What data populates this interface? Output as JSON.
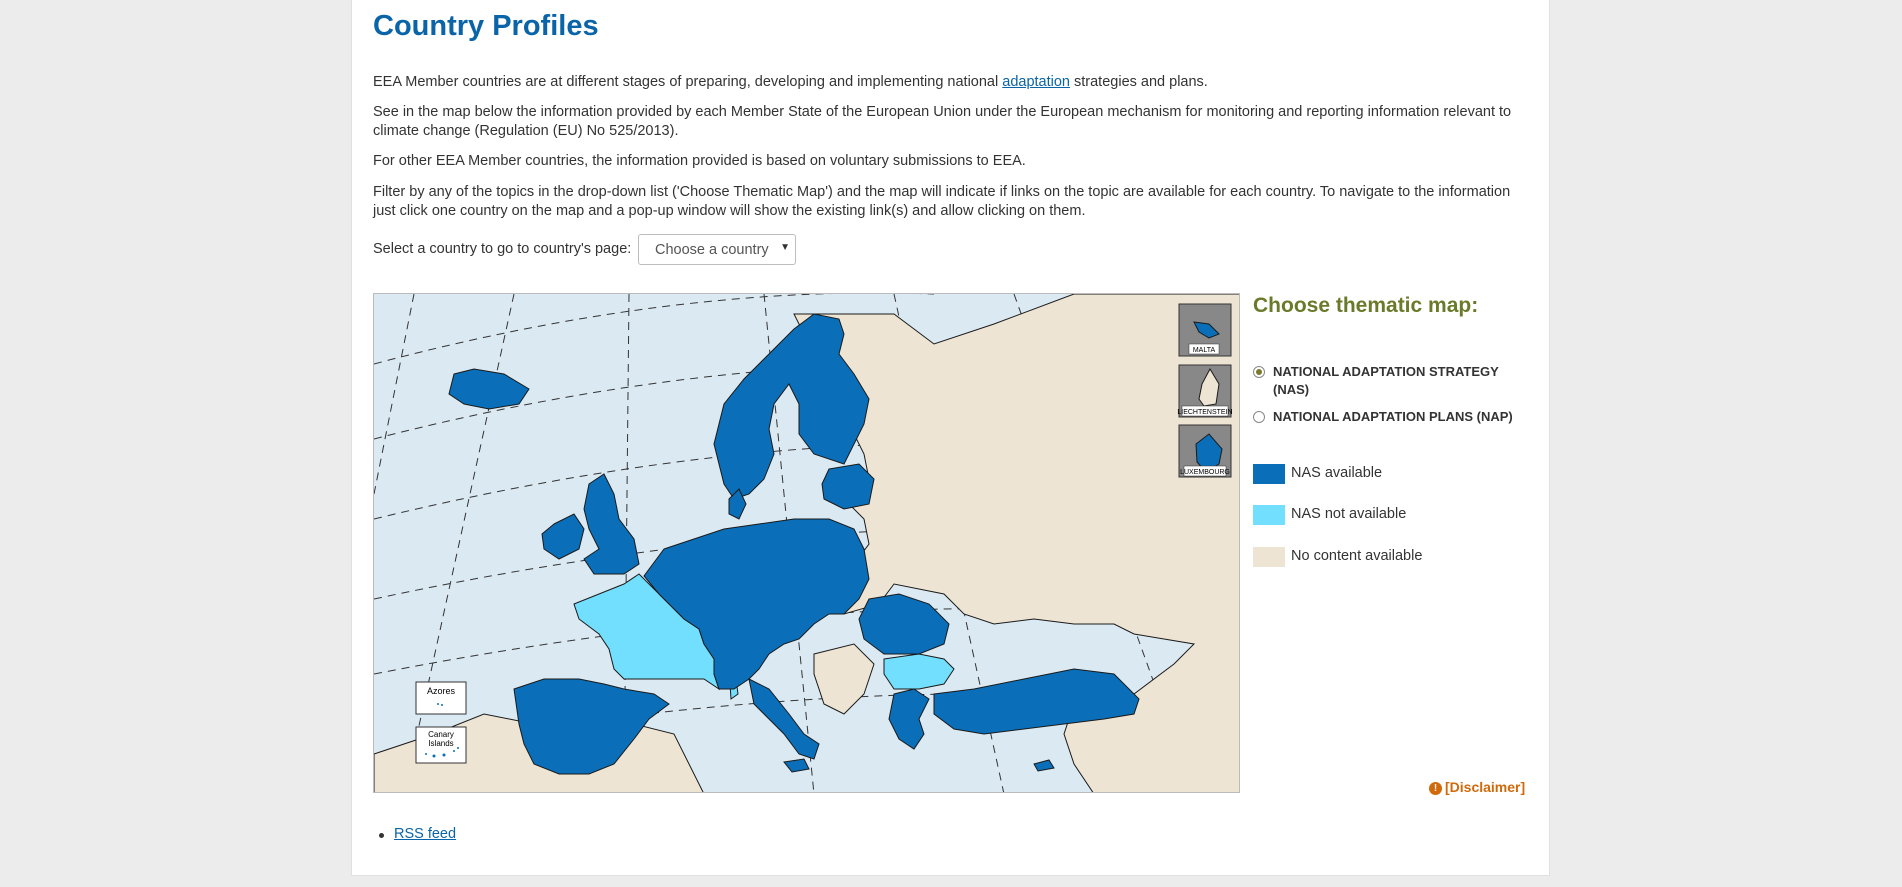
{
  "header": {
    "title": "Country Profiles"
  },
  "intro": {
    "p1_before": "EEA Member countries are at different stages of preparing, developing and implementing national ",
    "p1_link": "adaptation",
    "p1_after": " strategies and plans.",
    "p2": "See in the map below the information provided by each Member State of the European Union under the European mechanism for monitoring and reporting information relevant to climate change (Regulation (EU) No 525/2013).",
    "p3": "For other EEA Member countries, the information provided is based on voluntary submissions to EEA.",
    "p4": "Filter by any of the topics in the drop-down list ('Choose Thematic Map') and the map will indicate if links on the topic are available for each country. To navigate to the information just click one country on the map and a pop-up window will show the existing link(s) and allow clicking on them."
  },
  "country_select": {
    "label": "Select a country to go to country's page:",
    "value": "Choose a country"
  },
  "map": {
    "insets": {
      "malta": "MALTA",
      "liechtenstein": "LIECHTENSTEIN",
      "luxembourg": "LUXEMBOURG",
      "azores": "Azores",
      "canary": "Canary Islands"
    },
    "colors": {
      "sea": "#dbe9f3",
      "nas_available": "#0a6fb8",
      "nas_not_available": "#73dffe",
      "no_content": "#ede4d4",
      "border": "#1a1a1a"
    }
  },
  "thematic": {
    "title": "Choose thematic map:",
    "options": [
      {
        "label": "NATIONAL ADAPTATION STRATEGY (NAS)",
        "selected": true
      },
      {
        "label": "NATIONAL ADAPTATION PLANS (NAP)",
        "selected": false
      }
    ]
  },
  "legend": [
    {
      "label": "NAS available",
      "color": "#0a6fb8"
    },
    {
      "label": "NAS not available",
      "color": "#73dffe"
    },
    {
      "label": "No content available",
      "color": "#ede4d4"
    }
  ],
  "disclaimer": {
    "label": "[Disclaimer]",
    "icon": "exclamation-circle-icon"
  },
  "footer": {
    "rss_label": "RSS feed"
  }
}
